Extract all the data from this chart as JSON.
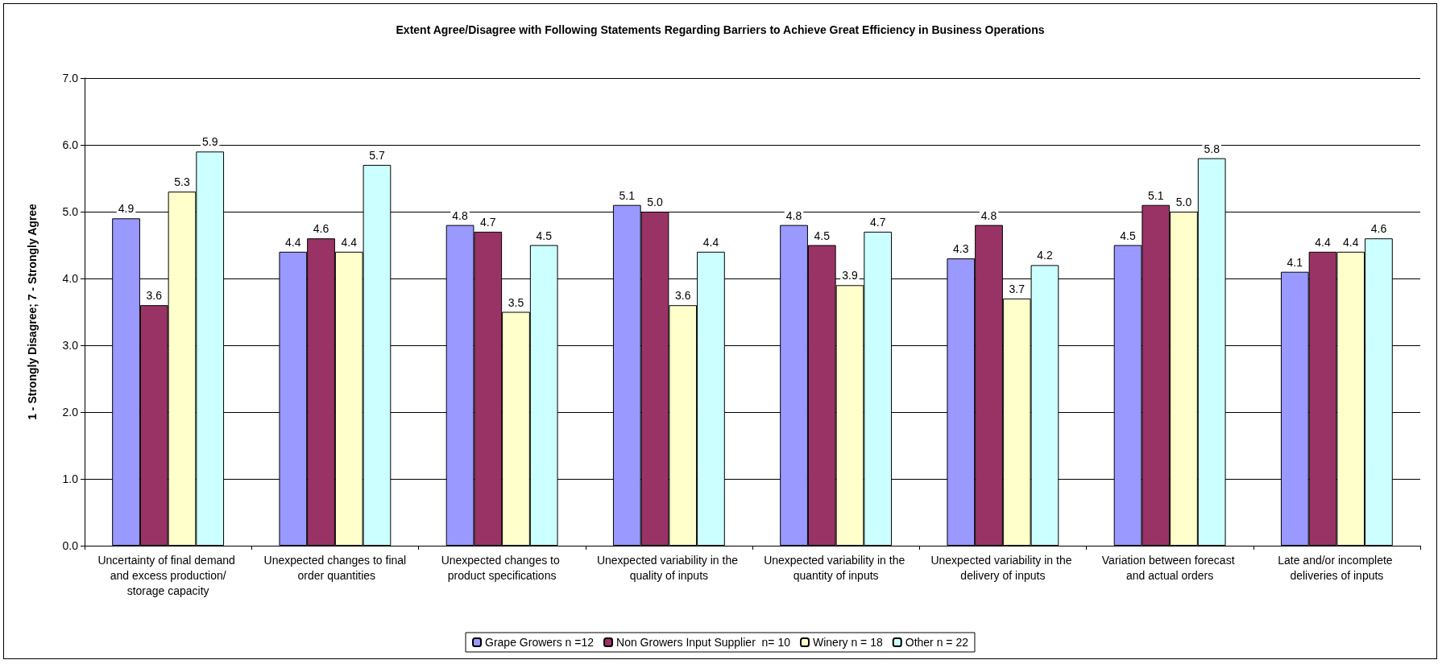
{
  "chart_data": {
    "type": "bar",
    "title": "Extent Agree/Disagree with Following Statements Regarding Barriers to Achieve Great Efficiency in Business Operations",
    "ylabel": "1 - Strongly Disagree; 7 - Strongly Agree",
    "categories": [
      "Uncertainty of final demand and excess production/storage capacity",
      "Unexpected changes to final order quantities",
      "Unexpected changes to product specifications",
      "Unexpected variability in the quality of inputs",
      "Unexpected variability in the quantity of inputs",
      "Unexpected variability in the delivery of inputs",
      "Variation between forecast and actual orders",
      "Late and/or incomplete deliveries of inputs"
    ],
    "series": [
      {
        "name": "Grape Growers n =12",
        "color": "#9999ff",
        "values": [
          4.9,
          4.4,
          4.8,
          5.1,
          4.8,
          4.3,
          4.5,
          4.1
        ],
        "value_labels": [
          "4.9",
          "4.4",
          "4.8",
          "5.1",
          "4.8",
          "4.3",
          "4.5",
          "4.1"
        ]
      },
      {
        "name": "Non Growers Input Supplier  n= 10",
        "color": "#993366",
        "values": [
          3.6,
          4.6,
          4.7,
          5.0,
          4.5,
          4.8,
          5.1,
          4.4
        ],
        "value_labels": [
          "3.6",
          "4.6",
          "4.7",
          "5.0",
          "4.5",
          "4.8",
          "5.1",
          "4.4"
        ]
      },
      {
        "name": "Winery n = 18",
        "color": "#ffffcc",
        "values": [
          5.3,
          4.4,
          3.5,
          3.6,
          3.9,
          3.7,
          5.0,
          4.4
        ],
        "value_labels": [
          "5.3",
          "4.4",
          "3.5",
          "3.6",
          "3.9",
          "3.7",
          "5.0",
          "4.4"
        ]
      },
      {
        "name": "Other n = 22",
        "color": "#ccffff",
        "values": [
          5.9,
          5.7,
          4.5,
          4.4,
          4.7,
          4.2,
          5.8,
          4.6
        ],
        "value_labels": [
          "5.9",
          "5.7",
          "4.5",
          "4.4",
          "4.7",
          "4.2",
          "5.8",
          "4.6"
        ]
      }
    ],
    "ylim": [
      0,
      7
    ],
    "yticks": [
      {
        "value": 0,
        "label": "0.0"
      },
      {
        "value": 1,
        "label": "1.0"
      },
      {
        "value": 2,
        "label": "2.0"
      },
      {
        "value": 3,
        "label": "3.0"
      },
      {
        "value": 4,
        "label": "4.0"
      },
      {
        "value": 5,
        "label": "5.0"
      },
      {
        "value": 6,
        "label": "6.0"
      },
      {
        "value": 7,
        "label": "7.0"
      }
    ],
    "grid": "y",
    "legend": "bottom"
  }
}
